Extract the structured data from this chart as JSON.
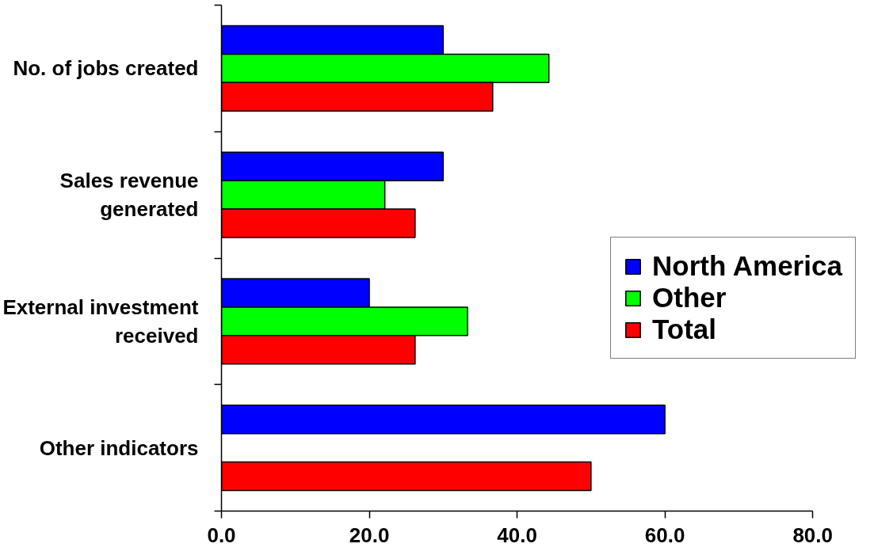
{
  "chart_data": {
    "type": "bar",
    "orientation": "horizontal",
    "categories": [
      "No. of jobs created",
      "Sales revenue\ngenerated",
      "External investment\nreceived",
      "Other indicators"
    ],
    "series": [
      {
        "name": "North America",
        "color": "#0000ff",
        "values": [
          30,
          30,
          20,
          60
        ]
      },
      {
        "name": "Other",
        "color": "#00ff00",
        "values": [
          44.3,
          22.1,
          33.3,
          null
        ]
      },
      {
        "name": "Total",
        "color": "#ff0000",
        "values": [
          36.7,
          26.2,
          26.2,
          50
        ]
      }
    ],
    "xlim": [
      0,
      80
    ],
    "xticks": [
      {
        "value": 0,
        "label": "0.0"
      },
      {
        "value": 20,
        "label": "20.0"
      },
      {
        "value": 40,
        "label": "40.0"
      },
      {
        "value": 60,
        "label": "60.0"
      },
      {
        "value": 80,
        "label": "80.0"
      }
    ],
    "grid": false,
    "legend": "right"
  }
}
